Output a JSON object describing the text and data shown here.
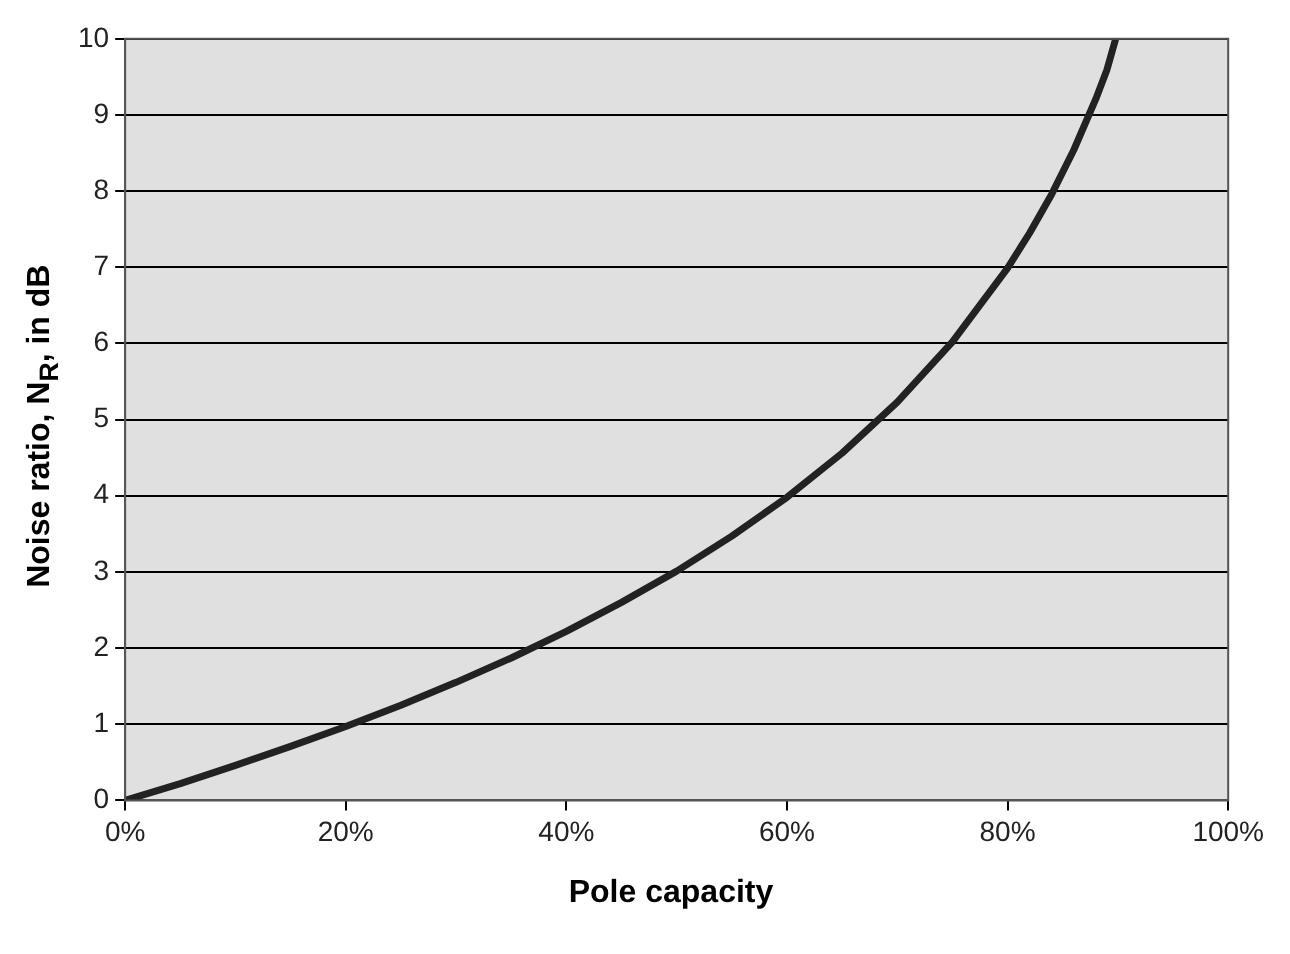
{
  "chart_data": {
    "type": "line",
    "xlabel": "Pole capacity",
    "ylabel": "Noise ratio, N$_{R}$, in dB",
    "x": [
      0,
      5,
      10,
      15,
      20,
      25,
      30,
      35,
      40,
      45,
      50,
      55,
      60,
      65,
      70,
      75,
      80,
      82,
      84,
      86,
      88,
      89,
      89.8
    ],
    "series": [
      {
        "color": "#222222",
        "values": [
          0,
          0.22,
          0.46,
          0.71,
          0.97,
          1.25,
          1.55,
          1.87,
          2.22,
          2.6,
          3.01,
          3.47,
          3.98,
          4.56,
          5.23,
          6.02,
          6.99,
          7.45,
          7.96,
          8.54,
          9.21,
          9.59,
          10
        ]
      }
    ],
    "xlim": [
      0,
      100
    ],
    "xticks": [
      {
        "value": 0,
        "label": "0%"
      },
      {
        "value": 20,
        "label": "20%"
      },
      {
        "value": 40,
        "label": "40%"
      },
      {
        "value": 60,
        "label": "60%"
      },
      {
        "value": 80,
        "label": "80%"
      },
      {
        "value": 100,
        "label": "100%"
      }
    ],
    "ylim": [
      0,
      10
    ],
    "yticks": [
      0,
      1,
      2,
      3,
      4,
      5,
      6,
      7,
      8,
      9,
      10
    ],
    "grid": "y",
    "legend": false,
    "marker": "none",
    "line_style": "solid"
  }
}
